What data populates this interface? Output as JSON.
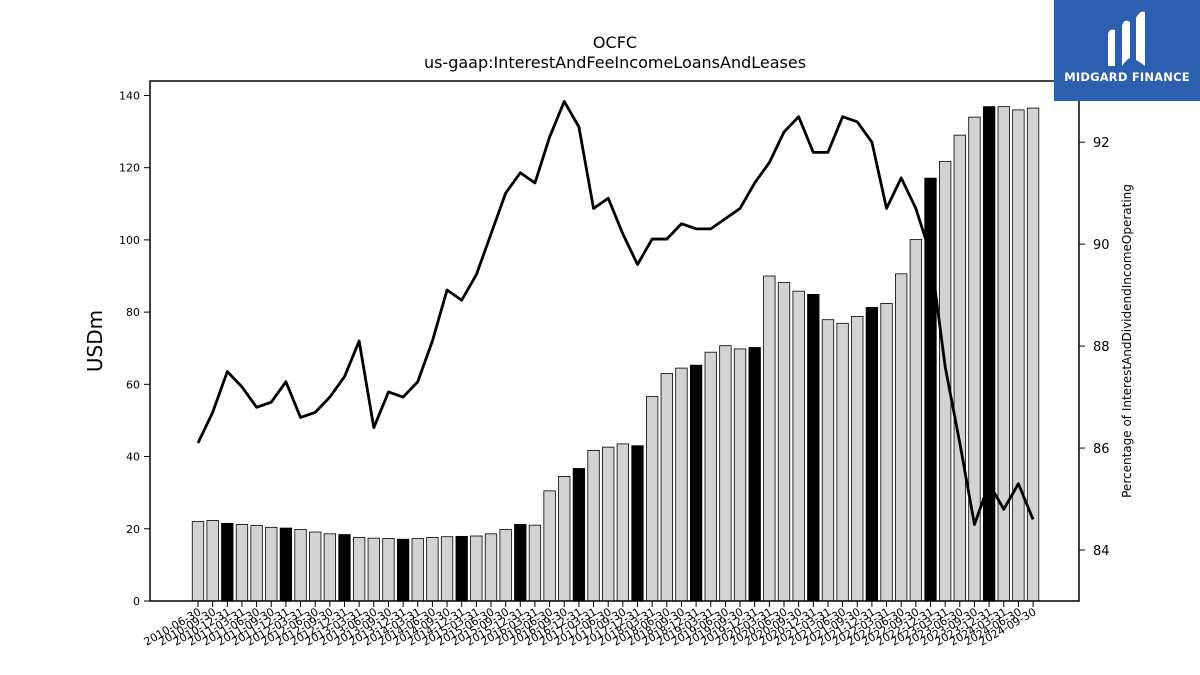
{
  "chart_data": {
    "type": "bar+line",
    "title": "OCFC",
    "subtitle": "us-gaap:InterestAndFeeIncomeLoansAndLeases",
    "ylabel": "USDm",
    "y2label": "Percentage of InterestAndDividendIncomeOperating",
    "ylim": [
      0,
      144
    ],
    "y2lim": [
      83,
      93.2
    ],
    "yticks": [
      0,
      20,
      40,
      60,
      80,
      100,
      120,
      140
    ],
    "y2ticks": [
      84,
      86,
      88,
      90,
      92
    ],
    "categories": [
      "2010-06-30",
      "2010-09-30",
      "2010-12-31",
      "2011-03-31",
      "2011-06-30",
      "2011-09-30",
      "2011-12-31",
      "2012-03-31",
      "2012-06-30",
      "2012-09-30",
      "2012-12-31",
      "2013-03-31",
      "2013-06-30",
      "2013-09-30",
      "2013-12-31",
      "2014-03-31",
      "2014-06-30",
      "2014-09-30",
      "2014-12-31",
      "2015-03-31",
      "2015-06-30",
      "2015-09-30",
      "2015-12-31",
      "2016-03-31",
      "2016-06-30",
      "2016-09-30",
      "2016-12-31",
      "2017-03-31",
      "2017-06-30",
      "2017-09-30",
      "2017-12-31",
      "2018-03-31",
      "2018-06-30",
      "2018-09-30",
      "2018-12-31",
      "2019-03-31",
      "2019-06-30",
      "2019-09-30",
      "2019-12-31",
      "2020-03-31",
      "2020-06-30",
      "2020-09-30",
      "2020-12-31",
      "2021-03-31",
      "2021-06-30",
      "2021-09-30",
      "2021-12-31",
      "2022-03-31",
      "2022-06-30",
      "2022-09-30",
      "2022-12-31",
      "2023-03-31",
      "2023-06-30",
      "2023-09-30",
      "2023-12-31",
      "2024-03-31",
      "2024-06-30",
      "2024-09-30"
    ],
    "series": [
      {
        "kind": "bar",
        "values": [
          22.0,
          22.3,
          21.5,
          21.2,
          20.9,
          20.4,
          20.2,
          19.8,
          19.1,
          18.6,
          18.4,
          17.6,
          17.4,
          17.3,
          17.1,
          17.3,
          17.6,
          17.8,
          17.9,
          18.0,
          18.6,
          19.8,
          21.2,
          21.0,
          30.5,
          34.5,
          36.7,
          41.7,
          42.6,
          43.5,
          43.0,
          56.6,
          63.0,
          64.5,
          65.3,
          68.9,
          70.7,
          69.8,
          70.2,
          90.0,
          88.2,
          85.8,
          84.9,
          77.9,
          76.9,
          78.8,
          81.3,
          82.4,
          90.6,
          100.1,
          117.1,
          121.7,
          129.0,
          134.0,
          136.9,
          136.9,
          136.0,
          136.5
        ],
        "highlight": [
          false,
          false,
          true,
          false,
          false,
          false,
          true,
          false,
          false,
          false,
          true,
          false,
          false,
          false,
          true,
          false,
          false,
          false,
          true,
          false,
          false,
          false,
          true,
          false,
          false,
          false,
          true,
          false,
          false,
          false,
          true,
          false,
          false,
          false,
          true,
          false,
          false,
          false,
          true,
          false,
          false,
          false,
          true,
          false,
          false,
          false,
          true,
          false,
          false,
          false,
          true,
          false,
          false,
          false,
          true,
          false,
          false,
          false
        ]
      },
      {
        "kind": "line",
        "axis": "right",
        "values": [
          86.1,
          86.7,
          87.5,
          87.2,
          86.8,
          86.9,
          87.3,
          86.6,
          86.7,
          87.0,
          87.4,
          88.1,
          86.4,
          87.1,
          87.0,
          87.3,
          88.1,
          89.1,
          88.9,
          89.4,
          90.2,
          91.0,
          91.4,
          91.2,
          92.1,
          92.8,
          92.3,
          90.7,
          90.9,
          90.2,
          89.6,
          90.1,
          90.1,
          90.4,
          90.3,
          90.3,
          90.5,
          90.7,
          91.2,
          91.6,
          92.2,
          92.5,
          91.8,
          91.8,
          92.5,
          92.4,
          92.0,
          90.7,
          91.3,
          90.7,
          89.8,
          87.6,
          86.1,
          84.5,
          85.3,
          84.8,
          85.3,
          84.6
        ]
      }
    ],
    "colors": {
      "bar": "#d3d3d3",
      "bar_highlight": "#000000",
      "line": "#000000"
    }
  },
  "logo": {
    "text": "MIDGARD FINANCE"
  }
}
